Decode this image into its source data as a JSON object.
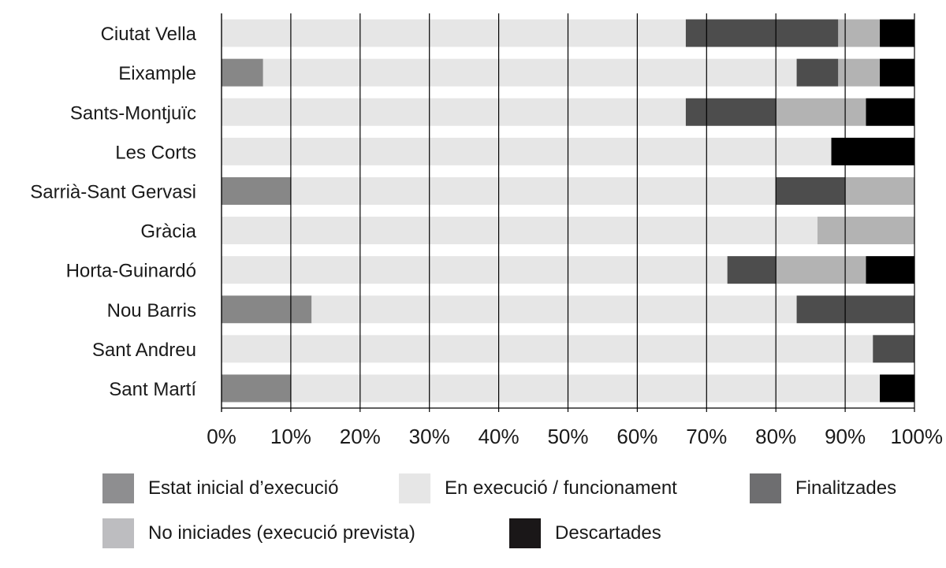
{
  "chart_data": {
    "type": "bar",
    "orientation": "horizontal",
    "stacked": true,
    "percent": true,
    "categories": [
      "Ciutat Vella",
      "Eixample",
      "Sants-Montjuïc",
      "Les Corts",
      "Sarrià-Sant Gervasi",
      "Gràcia",
      "Horta-Guinardó",
      "Nou Barris",
      "Sant Andreu",
      "Sant Martí"
    ],
    "series": [
      {
        "name": "Estat inicial d’execució",
        "color": "#878787",
        "legend_color": "#8e8e90",
        "values": [
          0,
          6,
          0,
          0,
          10,
          0,
          0,
          13,
          0,
          10
        ]
      },
      {
        "name": "En execució / funcionament",
        "color": "#e6e6e6",
        "legend_color": "#e6e6e6",
        "values": [
          67,
          77,
          67,
          88,
          70,
          86,
          73,
          70,
          94,
          85
        ]
      },
      {
        "name": "Finalitzades",
        "color": "#4d4d4d",
        "legend_color": "#6e6e70",
        "values": [
          22,
          6,
          13,
          0,
          10,
          0,
          7,
          17,
          6,
          0
        ]
      },
      {
        "name": "No iniciades (execució prevista)",
        "color": "#b3b3b3",
        "legend_color": "#bdbdc0",
        "values": [
          6,
          6,
          13,
          0,
          10,
          14,
          13,
          0,
          0,
          0
        ]
      },
      {
        "name": "Descartades",
        "color": "#000000",
        "legend_color": "#1a1718",
        "values": [
          5,
          5,
          7,
          12,
          0,
          0,
          7,
          0,
          0,
          5
        ]
      }
    ],
    "xlim": [
      0,
      100
    ],
    "xticks": [
      "0%",
      "10%",
      "20%",
      "30%",
      "40%",
      "50%",
      "60%",
      "70%",
      "80%",
      "90%",
      "100%"
    ],
    "grid": "vertical",
    "legend_position": "bottom",
    "title": "",
    "xlabel": "",
    "ylabel": ""
  }
}
